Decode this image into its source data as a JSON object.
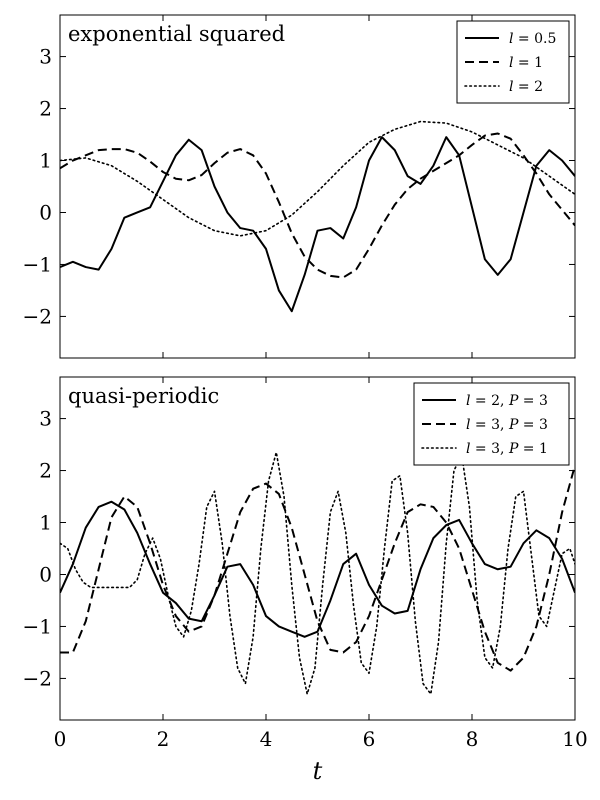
{
  "chart_data": [
    {
      "type": "line",
      "title": "exponential squared",
      "xlabel": "",
      "ylabel": "",
      "xlim": [
        0,
        10
      ],
      "ylim": [
        -2.8,
        3.8
      ],
      "x_ticks": [
        0,
        2,
        4,
        6,
        8,
        10
      ],
      "y_ticks": [
        -2,
        -1,
        0,
        1,
        2,
        3
      ],
      "x_tick_labels_shown": false,
      "grid": false,
      "legend_position": "top-right",
      "series": [
        {
          "name": "l = 0.5",
          "style": "solid",
          "x": [
            0,
            0.25,
            0.5,
            0.75,
            1,
            1.25,
            1.5,
            1.75,
            2,
            2.25,
            2.5,
            2.75,
            3,
            3.25,
            3.5,
            3.75,
            4,
            4.25,
            4.5,
            4.75,
            5,
            5.25,
            5.5,
            5.75,
            6,
            6.25,
            6.5,
            6.75,
            7,
            7.25,
            7.5,
            7.75,
            8,
            8.25,
            8.5,
            8.75,
            9,
            9.25,
            9.5,
            9.75,
            10
          ],
          "values": [
            -1.05,
            -0.95,
            -1.05,
            -1.1,
            -0.7,
            -0.1,
            0.0,
            0.1,
            0.6,
            1.1,
            1.4,
            1.2,
            0.5,
            0.0,
            -0.3,
            -0.35,
            -0.7,
            -1.5,
            -1.9,
            -1.2,
            -0.35,
            -0.3,
            -0.5,
            0.1,
            1.0,
            1.45,
            1.2,
            0.7,
            0.55,
            0.9,
            1.45,
            1.1,
            0.1,
            -0.9,
            -1.2,
            -0.9,
            0.0,
            0.9,
            1.2,
            1.0,
            0.7
          ]
        },
        {
          "name": "l = 1",
          "style": "dashed",
          "x": [
            0,
            0.25,
            0.5,
            0.75,
            1,
            1.25,
            1.5,
            1.75,
            2,
            2.25,
            2.5,
            2.75,
            3,
            3.25,
            3.5,
            3.75,
            4,
            4.25,
            4.5,
            4.75,
            5,
            5.25,
            5.5,
            5.75,
            6,
            6.25,
            6.5,
            6.75,
            7,
            7.25,
            7.5,
            7.75,
            8,
            8.25,
            8.5,
            8.75,
            9,
            9.25,
            9.5,
            9.75,
            10
          ],
          "values": [
            0.85,
            1.0,
            1.1,
            1.2,
            1.22,
            1.22,
            1.15,
            0.98,
            0.78,
            0.65,
            0.62,
            0.72,
            0.95,
            1.15,
            1.22,
            1.1,
            0.75,
            0.2,
            -0.4,
            -0.85,
            -1.1,
            -1.22,
            -1.25,
            -1.1,
            -0.7,
            -0.25,
            0.15,
            0.45,
            0.65,
            0.8,
            0.95,
            1.1,
            1.3,
            1.48,
            1.52,
            1.42,
            1.1,
            0.75,
            0.35,
            0.05,
            -0.25
          ]
        },
        {
          "name": "l = 2",
          "style": "dotted",
          "x": [
            0,
            0.5,
            1,
            1.5,
            2,
            2.5,
            3,
            3.5,
            4,
            4.5,
            5,
            5.5,
            6,
            6.5,
            7,
            7.5,
            8,
            8.5,
            9,
            9.5,
            10
          ],
          "values": [
            1.0,
            1.05,
            0.9,
            0.6,
            0.25,
            -0.1,
            -0.35,
            -0.45,
            -0.35,
            -0.05,
            0.4,
            0.9,
            1.35,
            1.6,
            1.75,
            1.72,
            1.55,
            1.3,
            1.05,
            0.7,
            0.35
          ]
        }
      ]
    },
    {
      "type": "line",
      "title": "quasi-periodic",
      "xlabel": "t",
      "ylabel": "",
      "xlim": [
        0,
        10
      ],
      "ylim": [
        -2.8,
        3.8
      ],
      "x_ticks": [
        0,
        2,
        4,
        6,
        8,
        10
      ],
      "y_ticks": [
        -2,
        -1,
        0,
        1,
        2,
        3
      ],
      "x_tick_labels": [
        "0",
        "2",
        "4",
        "6",
        "8",
        "10"
      ],
      "y_tick_labels": [
        "−2",
        "−1",
        "0",
        "1",
        "2",
        "3"
      ],
      "grid": false,
      "legend_position": "top-right",
      "series": [
        {
          "name": "l = 2, P = 3",
          "style": "solid",
          "x": [
            0,
            0.25,
            0.5,
            0.75,
            1,
            1.25,
            1.5,
            1.75,
            2,
            2.25,
            2.5,
            2.75,
            3,
            3.25,
            3.5,
            3.75,
            4,
            4.25,
            4.5,
            4.75,
            5,
            5.25,
            5.5,
            5.75,
            6,
            6.25,
            6.5,
            6.75,
            7,
            7.25,
            7.5,
            7.75,
            8,
            8.25,
            8.5,
            8.75,
            9,
            9.25,
            9.5,
            9.75,
            10
          ],
          "values": [
            -0.35,
            0.2,
            0.9,
            1.3,
            1.4,
            1.25,
            0.8,
            0.2,
            -0.35,
            -0.55,
            -0.85,
            -0.9,
            -0.4,
            0.15,
            0.2,
            -0.2,
            -0.8,
            -1.0,
            -1.1,
            -1.2,
            -1.1,
            -0.5,
            0.2,
            0.4,
            -0.2,
            -0.6,
            -0.75,
            -0.7,
            0.1,
            0.7,
            0.95,
            1.05,
            0.6,
            0.2,
            0.1,
            0.15,
            0.6,
            0.85,
            0.7,
            0.3,
            -0.35
          ]
        },
        {
          "name": "l = 3, P = 3",
          "style": "dashed",
          "x": [
            0,
            0.25,
            0.5,
            0.75,
            1,
            1.25,
            1.5,
            1.75,
            2,
            2.25,
            2.5,
            2.75,
            3,
            3.25,
            3.5,
            3.75,
            4,
            4.25,
            4.5,
            4.75,
            5,
            5.25,
            5.5,
            5.75,
            6,
            6.25,
            6.5,
            6.75,
            7,
            7.25,
            7.5,
            7.75,
            8,
            8.25,
            8.5,
            8.75,
            9,
            9.25,
            9.5,
            9.75,
            10
          ],
          "values": [
            -1.5,
            -1.5,
            -0.9,
            0.1,
            1.1,
            1.5,
            1.3,
            0.6,
            -0.2,
            -0.8,
            -1.1,
            -1.0,
            -0.4,
            0.4,
            1.2,
            1.65,
            1.75,
            1.55,
            0.9,
            0.0,
            -0.9,
            -1.45,
            -1.5,
            -1.3,
            -0.8,
            -0.1,
            0.6,
            1.2,
            1.35,
            1.3,
            1.0,
            0.5,
            -0.3,
            -1.1,
            -1.7,
            -1.85,
            -1.6,
            -1.0,
            0.0,
            1.2,
            2.1
          ]
        },
        {
          "name": "l = 3, P = 1",
          "style": "dotted",
          "x": [
            0,
            0.15,
            0.3,
            0.45,
            0.6,
            0.75,
            0.9,
            1.05,
            1.2,
            1.35,
            1.5,
            1.65,
            1.8,
            1.95,
            2.1,
            2.25,
            2.4,
            2.55,
            2.7,
            2.85,
            3.0,
            3.15,
            3.3,
            3.45,
            3.6,
            3.75,
            3.9,
            4.05,
            4.2,
            4.35,
            4.5,
            4.65,
            4.8,
            4.95,
            5.1,
            5.25,
            5.4,
            5.55,
            5.7,
            5.85,
            6.0,
            6.15,
            6.3,
            6.45,
            6.6,
            6.75,
            6.9,
            7.05,
            7.2,
            7.35,
            7.5,
            7.65,
            7.8,
            7.95,
            8.1,
            8.25,
            8.4,
            8.55,
            8.7,
            8.85,
            9.0,
            9.15,
            9.3,
            9.45,
            9.6,
            9.75,
            9.9,
            10.0
          ],
          "values": [
            0.6,
            0.5,
            0.1,
            -0.15,
            -0.25,
            -0.25,
            -0.25,
            -0.25,
            -0.25,
            -0.25,
            -0.1,
            0.4,
            0.7,
            0.3,
            -0.4,
            -1.0,
            -1.2,
            -0.7,
            0.2,
            1.3,
            1.6,
            0.6,
            -0.8,
            -1.8,
            -2.1,
            -1.2,
            0.5,
            1.8,
            2.35,
            1.5,
            -0.2,
            -1.6,
            -2.3,
            -1.8,
            -0.2,
            1.2,
            1.6,
            0.8,
            -0.6,
            -1.7,
            -1.9,
            -1.0,
            0.5,
            1.8,
            1.9,
            0.8,
            -0.9,
            -2.1,
            -2.3,
            -1.3,
            0.6,
            2.0,
            2.3,
            1.3,
            -0.5,
            -1.6,
            -1.8,
            -1.0,
            0.5,
            1.5,
            1.6,
            0.4,
            -0.8,
            -1.0,
            -0.3,
            0.4,
            0.5,
            0.2
          ]
        }
      ]
    }
  ]
}
